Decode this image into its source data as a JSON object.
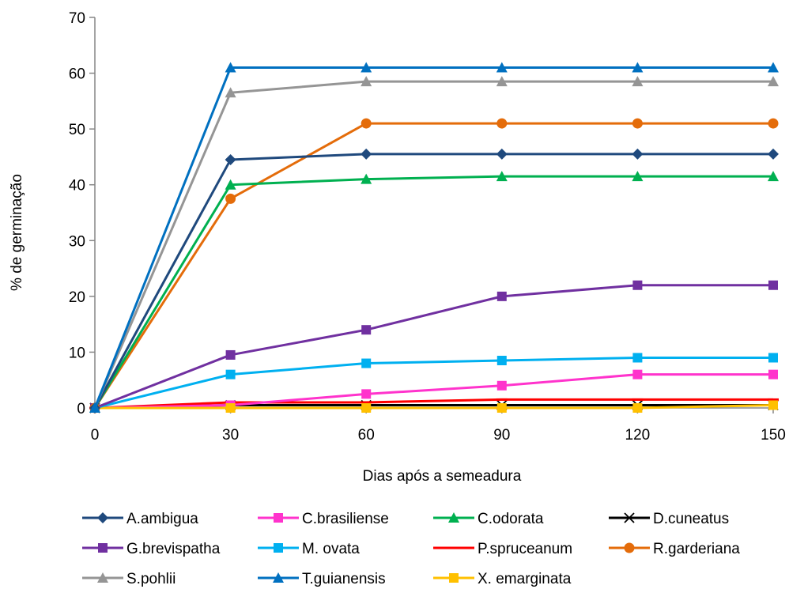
{
  "chart_data": {
    "type": "line",
    "title": "",
    "xlabel": "Dias após a semeadura",
    "ylabel": "% de germinação",
    "x": [
      0,
      30,
      60,
      90,
      120,
      150
    ],
    "xlim": [
      0,
      150
    ],
    "ylim": [
      0,
      70
    ],
    "x_ticks": [
      "0",
      "30",
      "60",
      "90",
      "120",
      "150"
    ],
    "y_ticks": [
      "0",
      "10",
      "20",
      "30",
      "40",
      "50",
      "60",
      "70"
    ],
    "grid": false,
    "legend_position": "bottom",
    "series": [
      {
        "name": "A.ambigua",
        "color": "#1F497D",
        "marker": "diamond",
        "values": [
          0,
          44.5,
          45.5,
          45.5,
          45.5,
          45.5
        ]
      },
      {
        "name": "C.brasiliense",
        "color": "#FF33CC",
        "marker": "square",
        "values": [
          0,
          0.5,
          2.5,
          4,
          6,
          6
        ]
      },
      {
        "name": "C.odorata",
        "color": "#00B050",
        "marker": "triangle",
        "values": [
          0,
          40,
          41,
          41.5,
          41.5,
          41.5
        ]
      },
      {
        "name": "D.cuneatus",
        "color": "#000000",
        "marker": "x",
        "values": [
          0,
          0.5,
          0.5,
          0.5,
          0.5,
          0.5
        ]
      },
      {
        "name": "G.brevispatha",
        "color": "#7030A0",
        "marker": "square",
        "values": [
          0,
          9.5,
          14,
          20,
          22,
          22
        ]
      },
      {
        "name": "M. ovata",
        "color": "#00B0F0",
        "marker": "square",
        "values": [
          0,
          6,
          8,
          8.5,
          9,
          9
        ]
      },
      {
        "name": "P.spruceanum",
        "color": "#FF0000",
        "marker": "dash",
        "values": [
          0,
          1,
          1,
          1.5,
          1.5,
          1.5
        ]
      },
      {
        "name": "R.garderiana",
        "color": "#E46C0A",
        "marker": "circle",
        "values": [
          0,
          37.5,
          51,
          51,
          51,
          51
        ]
      },
      {
        "name": "S.pohlii",
        "color": "#959595",
        "marker": "triangle",
        "values": [
          0,
          56.5,
          58.5,
          58.5,
          58.5,
          58.5
        ]
      },
      {
        "name": "T.guianensis",
        "color": "#0070C0",
        "marker": "triangle",
        "values": [
          0,
          61,
          61,
          61,
          61,
          61
        ]
      },
      {
        "name": "X. emarginata",
        "color": "#FFC000",
        "marker": "square",
        "values": [
          0,
          0,
          0,
          0,
          0,
          0.5
        ]
      }
    ]
  }
}
